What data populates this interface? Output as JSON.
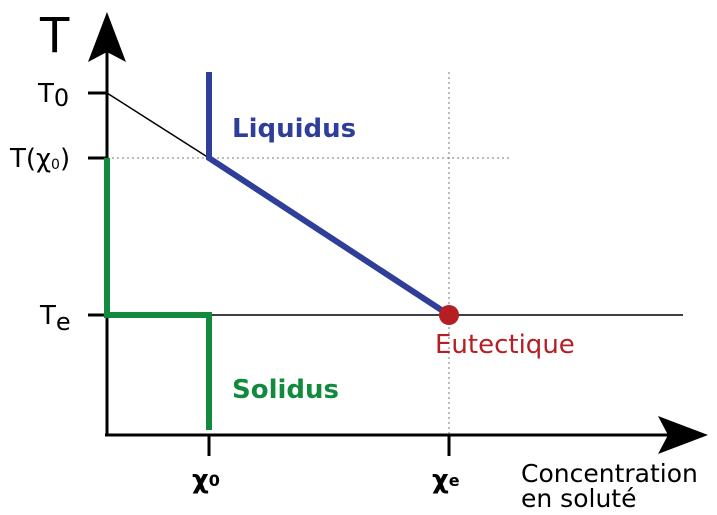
{
  "axes": {
    "y_title": "T",
    "y_labels": [
      {
        "text": "T",
        "sub": "0"
      },
      {
        "text": "T(χ",
        "sub": "0",
        "after": ")"
      },
      {
        "text": "T",
        "sub": "e"
      }
    ],
    "x_labels": [
      {
        "text": "χ",
        "sub": "0"
      },
      {
        "text": "χ",
        "sub": "e"
      }
    ],
    "x_title": [
      "Concentration",
      "en soluté"
    ]
  },
  "curves": {
    "liquidus": "Liquidus",
    "solidus": "Solidus",
    "eutectic": "Eutectique"
  }
}
